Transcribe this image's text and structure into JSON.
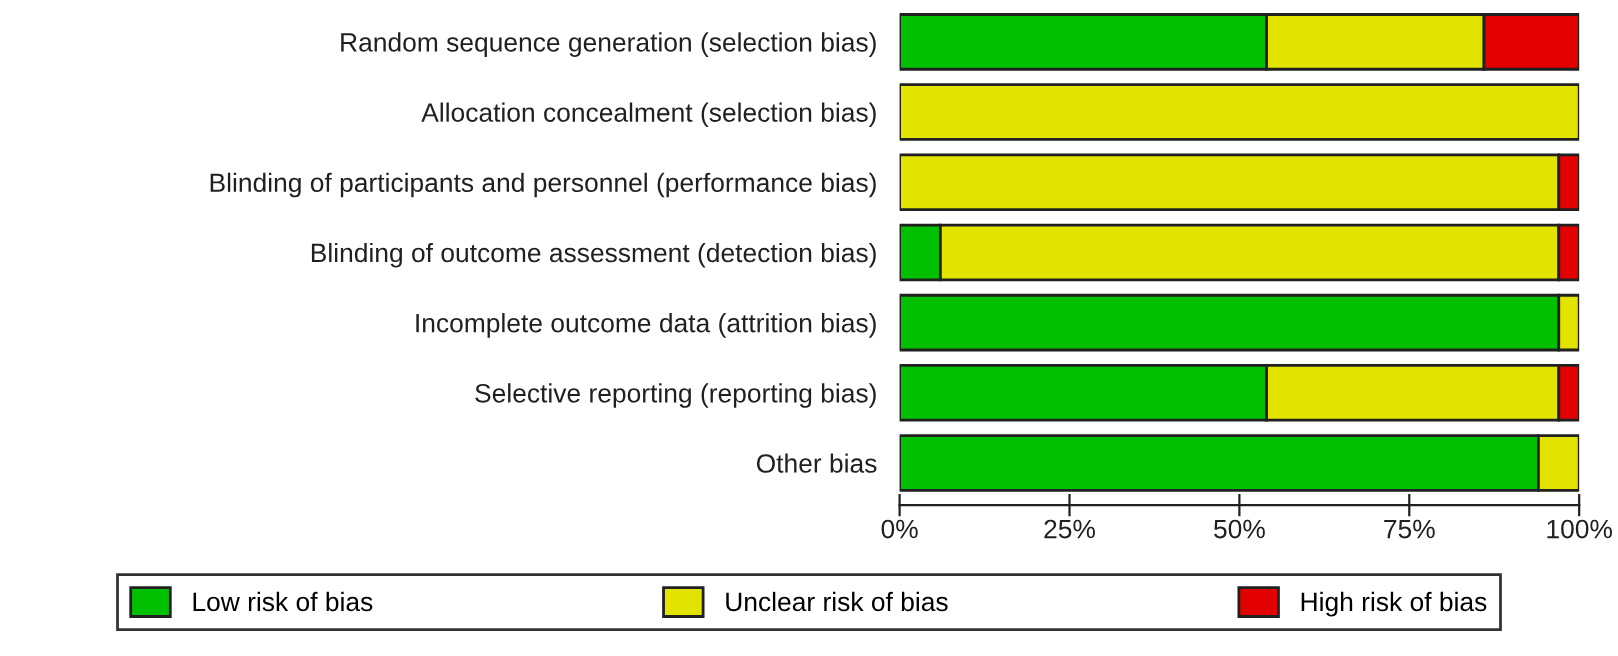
{
  "chart_data": {
    "type": "bar",
    "orientation": "horizontal",
    "stacked": true,
    "categories": [
      "Random sequence generation (selection bias)",
      "Allocation concealment (selection bias)",
      "Blinding of participants and personnel (performance bias)",
      "Blinding of outcome assessment (detection bias)",
      "Incomplete outcome data (attrition bias)",
      "Selective reporting (reporting bias)",
      "Other bias"
    ],
    "series": [
      {
        "name": "Low risk of bias",
        "color": "#00c000",
        "values": [
          54,
          0,
          0,
          6,
          97,
          54,
          94
        ]
      },
      {
        "name": "Unclear risk of bias",
        "color": "#e3e300",
        "values": [
          32,
          100,
          97,
          91,
          3,
          43,
          6
        ]
      },
      {
        "name": "High risk of bias",
        "color": "#e30000",
        "values": [
          14,
          0,
          3,
          3,
          0,
          3,
          0
        ]
      }
    ],
    "xlim": [
      0,
      100
    ],
    "xticks": [
      {
        "value": 0,
        "label": "0%"
      },
      {
        "value": 25,
        "label": "25%"
      },
      {
        "value": 50,
        "label": "50%"
      },
      {
        "value": 75,
        "label": "75%"
      },
      {
        "value": 100,
        "label": "100%"
      }
    ],
    "grid": false,
    "legend": "bottom"
  }
}
